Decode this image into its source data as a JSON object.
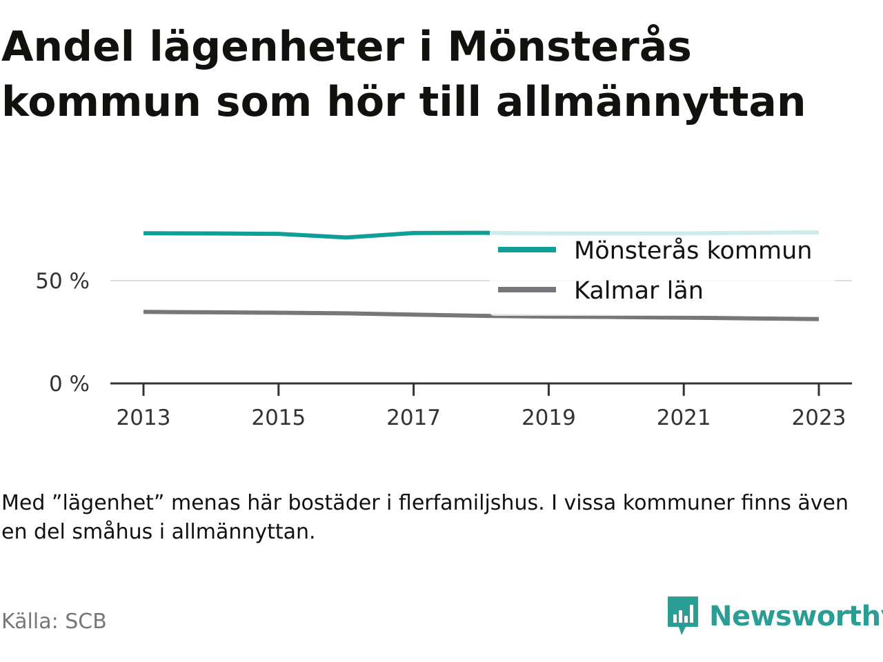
{
  "title": "Andel lägenheter i Mönsterås kommun som hör till allmännyttan",
  "note": "Med ”lägenhet” menas här bostäder i flerfamiljshus. I vissa kommuner finns även en del småhus i allmännyttan.",
  "source": "Källa: SCB",
  "brand": {
    "name": "Newsworthy",
    "icon": "newsworthy-logo-icon",
    "color": "#2a9d95"
  },
  "chart_data": {
    "type": "line",
    "title": "Andel lägenheter i Mönsterås kommun som hör till allmännyttan",
    "xlabel": "",
    "ylabel": "",
    "x": [
      2013,
      2014,
      2015,
      2016,
      2017,
      2018,
      2019,
      2020,
      2021,
      2022,
      2023
    ],
    "x_ticks": [
      "2013",
      "2015",
      "2017",
      "2019",
      "2021",
      "2023"
    ],
    "y_ticks": [
      {
        "value": 0,
        "label": "0 %"
      },
      {
        "value": 50,
        "label": "50 %"
      }
    ],
    "ylim": [
      0,
      100
    ],
    "grid": true,
    "legend_position": "top-right",
    "series": [
      {
        "name": "Mönsterås kommun",
        "color": "#0f9f96",
        "values": [
          73.1,
          73.0,
          72.8,
          71.0,
          73.2,
          73.3,
          73.0,
          73.0,
          73.0,
          73.3,
          73.5
        ]
      },
      {
        "name": "Kalmar län",
        "color": "#77767b",
        "values": [
          34.8,
          34.6,
          34.4,
          34.1,
          33.5,
          32.9,
          32.5,
          32.3,
          32.0,
          31.6,
          31.3
        ]
      }
    ]
  }
}
